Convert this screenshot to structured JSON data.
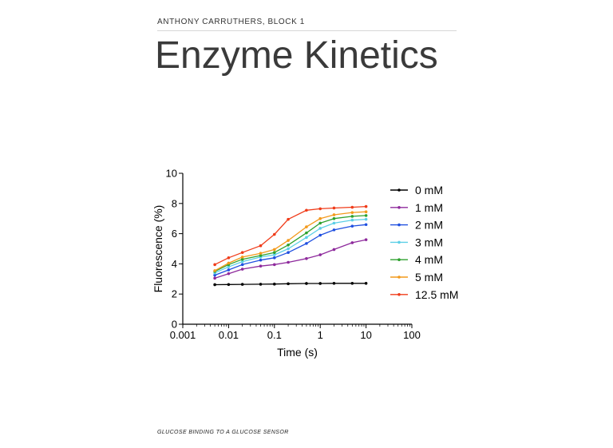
{
  "header": {
    "author": "ANTHONY CARRUTHERS, BLOCK 1",
    "title": "Enzyme Kinetics"
  },
  "footer": {
    "caption": "GLUCOSE BINDING TO A GLUCOSE SENSOR"
  },
  "chart_data": {
    "type": "scatter",
    "xlabel": "Time (s)",
    "ylabel": "Fluorescence  (%)",
    "xscale": "log",
    "xlim": [
      0.001,
      100
    ],
    "ylim": [
      0,
      10
    ],
    "xticks": [
      {
        "v": 0.001,
        "label": "0.001"
      },
      {
        "v": 0.01,
        "label": "0.01"
      },
      {
        "v": 0.1,
        "label": "0.1"
      },
      {
        "v": 1,
        "label": "1"
      },
      {
        "v": 10,
        "label": "10"
      },
      {
        "v": 100,
        "label": "100"
      }
    ],
    "yticks": [
      {
        "v": 0,
        "label": "0"
      },
      {
        "v": 2,
        "label": "2"
      },
      {
        "v": 4,
        "label": "4"
      },
      {
        "v": 6,
        "label": "6"
      },
      {
        "v": 8,
        "label": "8"
      },
      {
        "v": 10,
        "label": "10"
      }
    ],
    "legend_position": "right",
    "series": [
      {
        "name": "0 mM",
        "color": "#000000",
        "x": [
          0.005,
          0.01,
          0.02,
          0.05,
          0.1,
          0.2,
          0.5,
          1,
          2,
          5,
          10
        ],
        "y": [
          2.62,
          2.63,
          2.64,
          2.65,
          2.66,
          2.68,
          2.7,
          2.7,
          2.71,
          2.71,
          2.71
        ]
      },
      {
        "name": "1 mM",
        "color": "#8e2a9c",
        "x": [
          0.005,
          0.01,
          0.02,
          0.05,
          0.1,
          0.2,
          0.5,
          1,
          2,
          5,
          10
        ],
        "y": [
          3.05,
          3.35,
          3.65,
          3.85,
          3.95,
          4.1,
          4.35,
          4.6,
          4.95,
          5.4,
          5.6
        ]
      },
      {
        "name": "2 mM",
        "color": "#1f4fe0",
        "x": [
          0.005,
          0.01,
          0.02,
          0.05,
          0.1,
          0.2,
          0.5,
          1,
          2,
          5,
          10
        ],
        "y": [
          3.25,
          3.6,
          3.95,
          4.25,
          4.4,
          4.75,
          5.35,
          5.9,
          6.25,
          6.5,
          6.6
        ]
      },
      {
        "name": "3 mM",
        "color": "#5ccfe6",
        "x": [
          0.005,
          0.01,
          0.02,
          0.05,
          0.1,
          0.2,
          0.5,
          1,
          2,
          5,
          10
        ],
        "y": [
          3.4,
          3.8,
          4.15,
          4.45,
          4.6,
          5.0,
          5.75,
          6.35,
          6.7,
          6.9,
          6.95
        ]
      },
      {
        "name": "4 mM",
        "color": "#2ea12e",
        "x": [
          0.005,
          0.01,
          0.02,
          0.05,
          0.1,
          0.2,
          0.5,
          1,
          2,
          5,
          10
        ],
        "y": [
          3.5,
          3.95,
          4.3,
          4.55,
          4.75,
          5.25,
          6.05,
          6.7,
          7.0,
          7.15,
          7.2
        ]
      },
      {
        "name": "5 mM",
        "color": "#f39a1c",
        "x": [
          0.005,
          0.01,
          0.02,
          0.05,
          0.1,
          0.2,
          0.5,
          1,
          2,
          5,
          10
        ],
        "y": [
          3.55,
          4.05,
          4.45,
          4.7,
          4.95,
          5.55,
          6.45,
          7.0,
          7.25,
          7.4,
          7.45
        ]
      },
      {
        "name": "12.5 mM",
        "color": "#f03c1a",
        "x": [
          0.005,
          0.01,
          0.02,
          0.05,
          0.1,
          0.2,
          0.5,
          1,
          2,
          5,
          10
        ],
        "y": [
          3.95,
          4.4,
          4.75,
          5.2,
          5.95,
          6.95,
          7.55,
          7.65,
          7.7,
          7.75,
          7.8
        ]
      }
    ]
  }
}
